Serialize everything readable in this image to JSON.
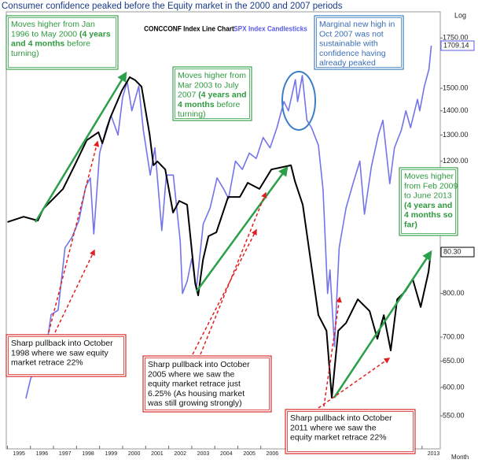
{
  "chart_data": {
    "type": "line",
    "title": "Consumer confidence peaked before the Equity market in the 2000 and 2007 periods",
    "y_label": "Log",
    "x_label": "Month",
    "log_y": true,
    "grid": false,
    "xlim": [
      1994.95,
      2013.79
    ],
    "xticks": [
      1995,
      1996,
      1997,
      1998,
      1999,
      2000,
      2001,
      2002,
      2003,
      2004,
      2005,
      2006,
      2013
    ],
    "ylim": [
      497,
      1896
    ],
    "yticks": [
      {
        "value": 1750,
        "label": "1750.00"
      },
      {
        "value": 1500,
        "label": "1500.00"
      },
      {
        "value": 1400,
        "label": "1400.00"
      },
      {
        "value": 1300,
        "label": "1300.00"
      },
      {
        "value": 1200,
        "label": "1200.00"
      },
      {
        "value": 800,
        "label": "800.00"
      },
      {
        "value": 700,
        "label": "700.00"
      },
      {
        "value": 650,
        "label": "650.00"
      },
      {
        "value": 600,
        "label": "600.00"
      },
      {
        "value": 550,
        "label": "550.00"
      }
    ],
    "y_current": {
      "value": 1709.14,
      "label": "1709.14"
    },
    "y2lim": [
      9.5,
      166.7
    ],
    "y2_current": {
      "value": 80.3,
      "label": "80.30"
    },
    "series": [
      {
        "name": "CONCCONF Index Line Chart",
        "color": "#000000",
        "axis": "y2",
        "x": [
          1995.0,
          1995.7,
          1996.32,
          1996.56,
          1996.9,
          1997.41,
          1997.92,
          1998.44,
          1998.95,
          1999.12,
          1999.46,
          1999.97,
          2000.31,
          2000.55,
          2000.82,
          2001.17,
          2001.34,
          2001.51,
          2001.85,
          2002.19,
          2002.46,
          2002.8,
          2003.15,
          2003.28,
          2003.49,
          2003.73,
          2004.07,
          2004.58,
          2005.09,
          2005.43,
          2005.94,
          2006.46,
          2006.97,
          2007.31,
          2007.48,
          2007.82,
          2008.16,
          2008.5,
          2008.85,
          2009.08,
          2009.36,
          2009.7,
          2010.21,
          2010.72,
          2011.06,
          2011.34,
          2011.64,
          2011.92,
          2012.26,
          2012.6,
          2012.94,
          2013.28,
          2013.38
        ],
        "values": [
          91.1,
          93.0,
          91.6,
          95.9,
          98.7,
          103.0,
          111.5,
          120.5,
          123.4,
          119.4,
          128.5,
          138.4,
          143.2,
          142.1,
          139.8,
          122.8,
          111.5,
          112.9,
          110.0,
          94.5,
          98.7,
          97.3,
          69.0,
          64.7,
          77.5,
          86.0,
          87.4,
          100.1,
          100.1,
          105.2,
          103.0,
          110.0,
          110.9,
          111.5,
          105.8,
          97.3,
          77.5,
          57.6,
          52.0,
          27.9,
          52.0,
          54.8,
          63.3,
          59.1,
          49.1,
          57.6,
          44.9,
          63.3,
          66.1,
          70.4,
          60.5,
          73.2,
          80.3
        ]
      },
      {
        "name": "SPX Index Candlesticks",
        "color": "#5a5ae6",
        "x": [
          1995.8,
          1996.0,
          1996.3,
          1996.6,
          1996.9,
          1997.2,
          1997.5,
          1997.8,
          1998.1,
          1998.4,
          1998.6,
          1998.75,
          1999.0,
          1999.3,
          1999.5,
          1999.8,
          2000.0,
          2000.2,
          2000.4,
          2000.7,
          2000.9,
          2001.2,
          2001.4,
          2001.7,
          2001.9,
          2002.2,
          2002.5,
          2002.6,
          2002.8,
          2003.0,
          2003.2,
          2003.5,
          2003.8,
          2004.1,
          2004.4,
          2004.6,
          2004.9,
          2005.2,
          2005.5,
          2005.8,
          2006.1,
          2006.4,
          2006.7,
          2007.0,
          2007.2,
          2007.5,
          2007.6,
          2007.8,
          2008.0,
          2008.2,
          2008.5,
          2008.7,
          2008.9,
          2009.0,
          2009.2,
          2009.4,
          2009.7,
          2010.0,
          2010.3,
          2010.5,
          2010.8,
          2011.1,
          2011.3,
          2011.6,
          2011.8,
          2012.1,
          2012.3,
          2012.5,
          2012.8,
          2012.9,
          2013.1,
          2013.3,
          2013.4
        ],
        "values": [
          580,
          615,
          650,
          650,
          750,
          760,
          920,
          950,
          1000,
          1110,
          1140,
          960,
          1230,
          1330,
          1380,
          1300,
          1460,
          1530,
          1400,
          1510,
          1320,
          1150,
          1250,
          970,
          1150,
          1150,
          940,
          800,
          830,
          890,
          810,
          990,
          1040,
          1140,
          1100,
          1070,
          1200,
          1170,
          1230,
          1210,
          1290,
          1250,
          1330,
          1440,
          1400,
          1540,
          1440,
          1560,
          1360,
          1330,
          1260,
          1100,
          800,
          860,
          680,
          920,
          1040,
          1120,
          1200,
          1020,
          1180,
          1300,
          1360,
          1120,
          1250,
          1320,
          1400,
          1330,
          1450,
          1400,
          1510,
          1590,
          1709.14
        ]
      }
    ],
    "annotations": [
      {
        "border": "#3aa34a",
        "text_color": "#2f9a3f",
        "lines": [
          [
            {
              "text": "Moves higher from Jan"
            }
          ],
          [
            {
              "text": "1996 to May 2000 "
            },
            {
              "text": "(4 years",
              "bold": true
            }
          ],
          [
            {
              "text": "and 4 months",
              "bold": true
            },
            {
              "text": " before"
            }
          ],
          [
            {
              "text": "turning)"
            }
          ]
        ]
      },
      {
        "border": "#3aa34a",
        "text_color": "#2f9a3f",
        "lines": [
          [
            {
              "text": "Moves higher from"
            }
          ],
          [
            {
              "text": "Mar 2003 to July"
            }
          ],
          [
            {
              "text": "2007 "
            },
            {
              "text": "(4 years and",
              "bold": true
            }
          ],
          [
            {
              "text": "4 months",
              "bold": true
            },
            {
              "text": " before"
            }
          ],
          [
            {
              "text": "turning)"
            }
          ]
        ]
      },
      {
        "border": "#3b7fc4",
        "text_color": "#3b6fb4",
        "lines": [
          [
            {
              "text": "Marginal new high in"
            }
          ],
          [
            {
              "text": "Oct 2007 was not"
            }
          ],
          [
            {
              "text": "sustainable with"
            }
          ],
          [
            {
              "text": "confidence having"
            }
          ],
          [
            {
              "text": "already peaked"
            }
          ]
        ]
      },
      {
        "border": "#3aa34a",
        "text_color": "#2f9a3f",
        "lines": [
          [
            {
              "text": "Moves higher"
            }
          ],
          [
            {
              "text": "from Feb 2009"
            }
          ],
          [
            {
              "text": "to June 2013"
            }
          ],
          [
            {
              "text": "(4 years and",
              "bold": true
            }
          ],
          [
            {
              "text": "4 months so",
              "bold": true
            }
          ],
          [
            {
              "text": "far)",
              "bold": true
            }
          ]
        ]
      },
      {
        "border": "#d92b2b",
        "text_color": "#111111",
        "lines": [
          [
            {
              "text": "Sharp pullback into October"
            }
          ],
          [
            {
              "text": "1998 where we saw equity"
            }
          ],
          [
            {
              "text": "market retrace 22%"
            }
          ]
        ]
      },
      {
        "border": "#d92b2b",
        "text_color": "#111111",
        "lines": [
          [
            {
              "text": "Sharp pullback into October"
            }
          ],
          [
            {
              "text": "2005 where we saw the"
            }
          ],
          [
            {
              "text": "equity market retrace just"
            }
          ],
          [
            {
              "text": "6.25% (As housing market"
            }
          ],
          [
            {
              "text": "was still growing strongly)"
            }
          ]
        ]
      },
      {
        "border": "#d92b2b",
        "text_color": "#111111",
        "lines": [
          [
            {
              "text": "Sharp pullback into October"
            }
          ],
          [
            {
              "text": "2011 where we saw the"
            }
          ],
          [
            {
              "text": "equity market retrace 22%"
            }
          ]
        ]
      }
    ]
  }
}
